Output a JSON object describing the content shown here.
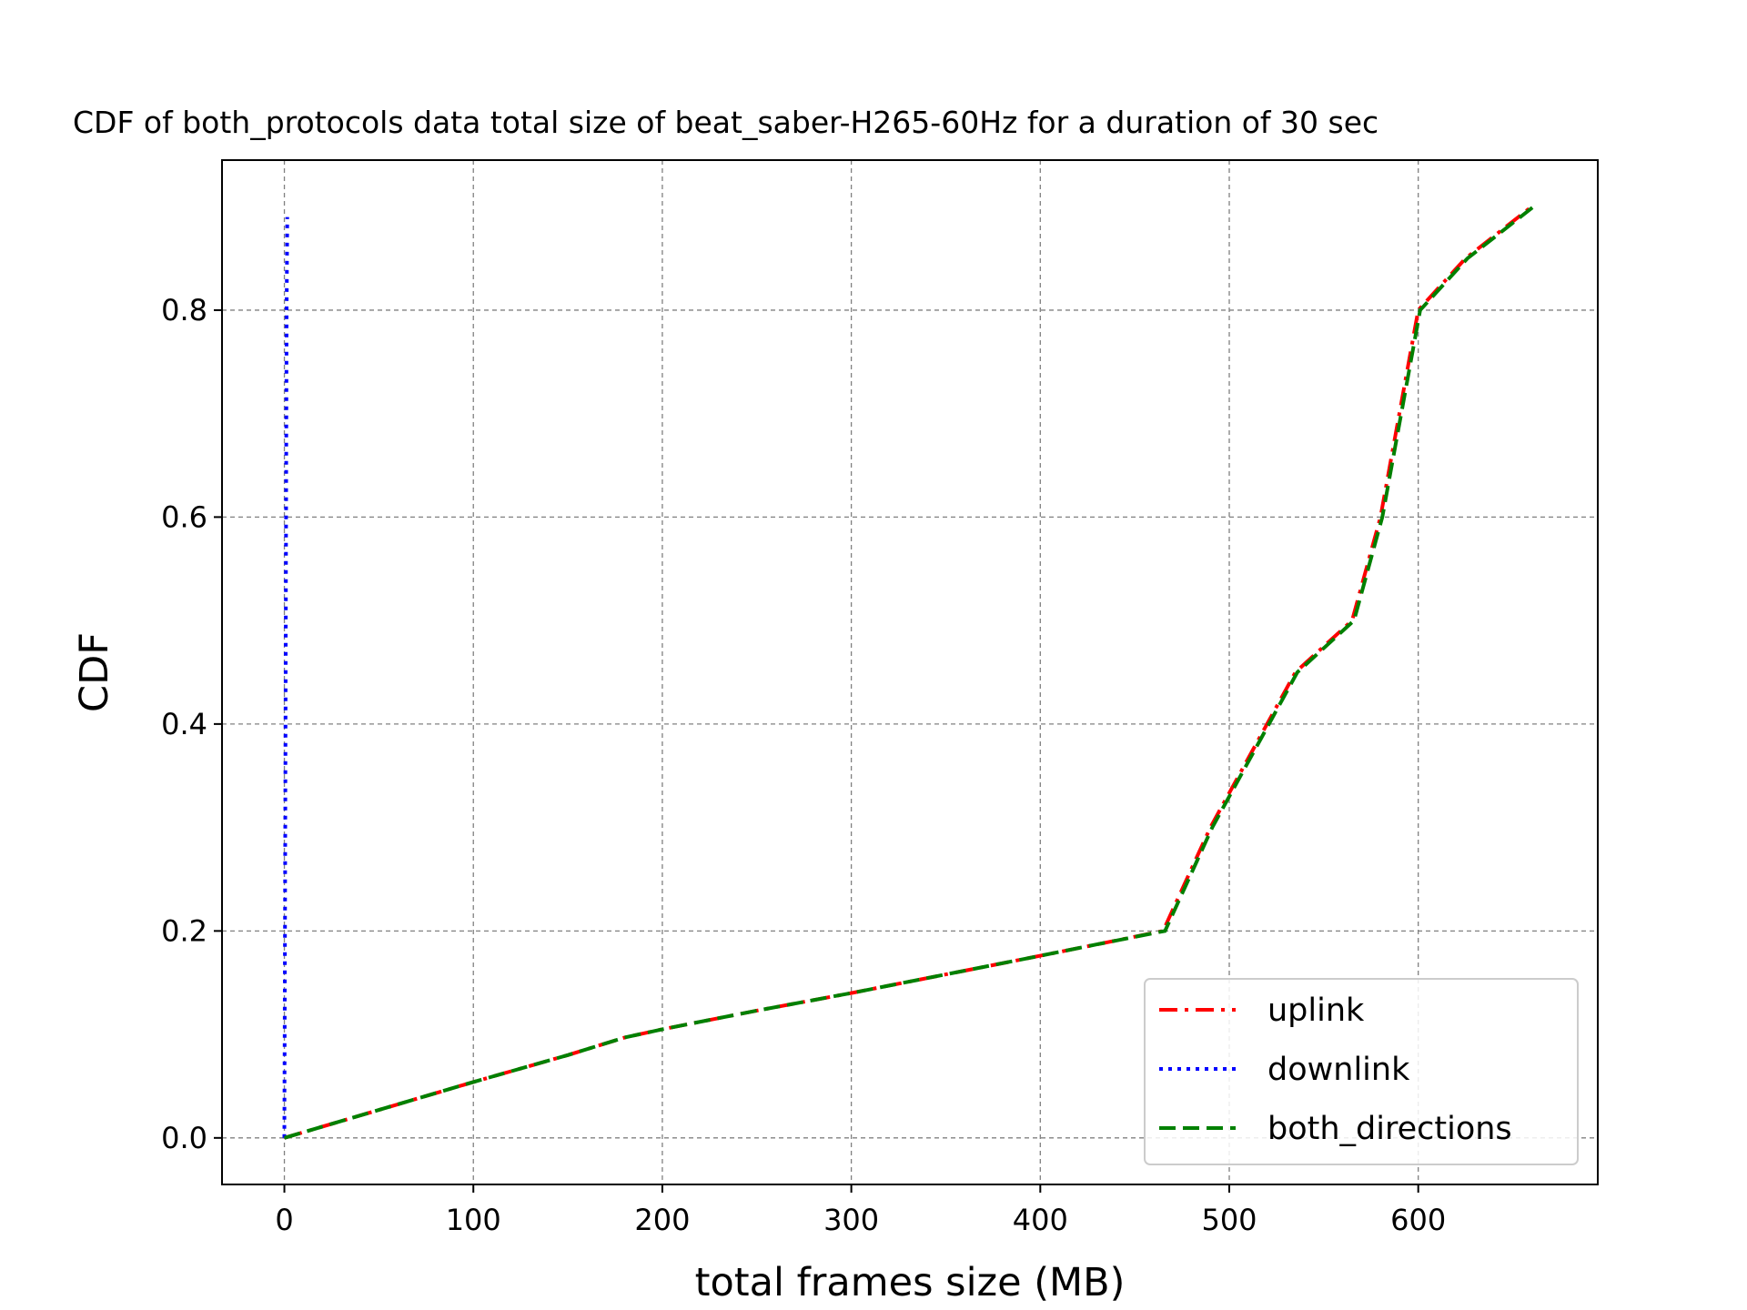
{
  "chart_data": {
    "type": "line",
    "title": "CDF of both_protocols data total size of beat_saber-H265-60Hz for a duration of 30 sec",
    "xlabel": "total frames size (MB)",
    "ylabel": "CDF",
    "xlim": [
      -33,
      695
    ],
    "ylim": [
      -0.045,
      0.945
    ],
    "xticks": [
      0,
      100,
      200,
      300,
      400,
      500,
      600
    ],
    "xtick_labels": [
      "0",
      "100",
      "200",
      "300",
      "400",
      "500",
      "600"
    ],
    "yticks": [
      0.0,
      0.2,
      0.4,
      0.6,
      0.8
    ],
    "ytick_labels": [
      "0.0",
      "0.2",
      "0.4",
      "0.6",
      "0.8"
    ],
    "grid": true,
    "legend_position": "lower-right",
    "series": [
      {
        "name": "uplink",
        "color": "#ff0000",
        "style": "dashdot",
        "x": [
          0,
          50,
          100,
          150,
          180,
          200,
          250,
          300,
          350,
          400,
          430,
          465,
          490,
          535,
          565,
          580,
          595,
          600,
          625,
          660
        ],
        "y": [
          0.0,
          0.027,
          0.054,
          0.08,
          0.097,
          0.105,
          0.123,
          0.14,
          0.158,
          0.176,
          0.187,
          0.2,
          0.3,
          0.45,
          0.5,
          0.6,
          0.75,
          0.8,
          0.85,
          0.9
        ]
      },
      {
        "name": "downlink",
        "color": "#0000ff",
        "style": "dotted",
        "x": [
          0,
          0.3,
          0.6,
          0.9,
          1.2,
          1.5
        ],
        "y": [
          0.0,
          0.2,
          0.4,
          0.6,
          0.8,
          0.89
        ]
      },
      {
        "name": "both_directions",
        "color": "#008000",
        "style": "dashed",
        "x": [
          0,
          50,
          100,
          150,
          180,
          200,
          250,
          300,
          350,
          400,
          430,
          466,
          491,
          536,
          566,
          581,
          596,
          601,
          626,
          661
        ],
        "y": [
          0.0,
          0.027,
          0.054,
          0.08,
          0.097,
          0.105,
          0.123,
          0.14,
          0.158,
          0.176,
          0.187,
          0.2,
          0.3,
          0.45,
          0.5,
          0.6,
          0.75,
          0.8,
          0.85,
          0.9
        ]
      }
    ]
  }
}
